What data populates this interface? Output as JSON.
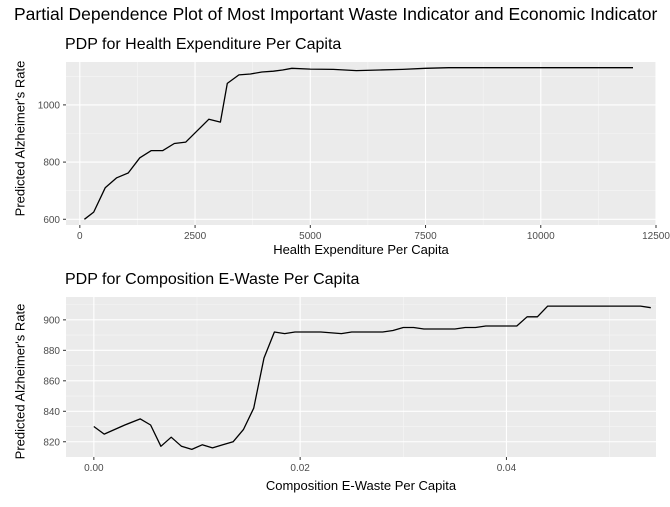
{
  "figure": {
    "title": "Partial Dependence Plot of Most Important Waste Indicator and Economic Indicator"
  },
  "chart_data": [
    {
      "type": "line",
      "title": "PDP for Health Expenditure Per Capita",
      "xlabel": "Health Expenditure Per Capita",
      "ylabel": "Predicted Alzheimer's Rate",
      "xlim": [
        -300,
        12500
      ],
      "ylim": [
        580,
        1150
      ],
      "xticks": [
        0,
        2500,
        5000,
        7500,
        10000,
        12500
      ],
      "xtick_labels": [
        "0",
        "2500",
        "5000",
        "7500",
        "10000",
        "12500"
      ],
      "yticks": [
        600,
        800,
        1000
      ],
      "ytick_labels": [
        "600",
        "800",
        "1000"
      ],
      "grid": true,
      "x": [
        100,
        300,
        550,
        800,
        1050,
        1300,
        1550,
        1800,
        2050,
        2300,
        2550,
        2800,
        3050,
        3200,
        3450,
        3700,
        3950,
        4200,
        4400,
        4600,
        5000,
        5500,
        6000,
        6500,
        7000,
        7500,
        8000,
        9000,
        10000,
        11000,
        12000
      ],
      "y": [
        600,
        625,
        710,
        745,
        762,
        815,
        840,
        840,
        865,
        870,
        910,
        950,
        940,
        1075,
        1105,
        1108,
        1115,
        1118,
        1122,
        1128,
        1125,
        1124,
        1120,
        1122,
        1124,
        1128,
        1130,
        1130,
        1130,
        1130,
        1130
      ]
    },
    {
      "type": "line",
      "title": "PDP for Composition E-Waste Per Capita",
      "xlabel": "Composition E-Waste Per Capita",
      "ylabel": "Predicted Alzheimer's Rate",
      "xlim": [
        -0.0027,
        0.0545
      ],
      "ylim": [
        810,
        915
      ],
      "xticks": [
        0.0,
        0.02,
        0.04
      ],
      "xtick_labels": [
        "0.00",
        "0.02",
        "0.04"
      ],
      "yticks": [
        820,
        840,
        860,
        880,
        900
      ],
      "ytick_labels": [
        "820",
        "840",
        "860",
        "880",
        "900"
      ],
      "grid": true,
      "x": [
        0.0,
        0.001,
        0.003,
        0.0045,
        0.0055,
        0.0065,
        0.0075,
        0.0085,
        0.0095,
        0.0105,
        0.0115,
        0.0125,
        0.0135,
        0.0145,
        0.0155,
        0.0165,
        0.0175,
        0.0185,
        0.0195,
        0.0205,
        0.022,
        0.024,
        0.025,
        0.026,
        0.027,
        0.028,
        0.029,
        0.03,
        0.031,
        0.032,
        0.033,
        0.034,
        0.035,
        0.036,
        0.037,
        0.038,
        0.039,
        0.04,
        0.041,
        0.042,
        0.043,
        0.044,
        0.045,
        0.046,
        0.047,
        0.048,
        0.049,
        0.05,
        0.051,
        0.052,
        0.053,
        0.054
      ],
      "y": [
        830,
        825,
        831,
        835,
        831,
        817,
        823,
        817,
        815,
        818,
        816,
        818,
        820,
        828,
        842,
        875,
        892,
        891,
        892,
        892,
        892,
        891,
        892,
        892,
        892,
        892,
        893,
        895,
        895,
        894,
        894,
        894,
        894,
        895,
        895,
        896,
        896,
        896,
        896,
        902,
        902,
        909,
        909,
        909,
        909,
        909,
        909,
        909,
        909,
        909,
        909,
        908
      ]
    }
  ]
}
